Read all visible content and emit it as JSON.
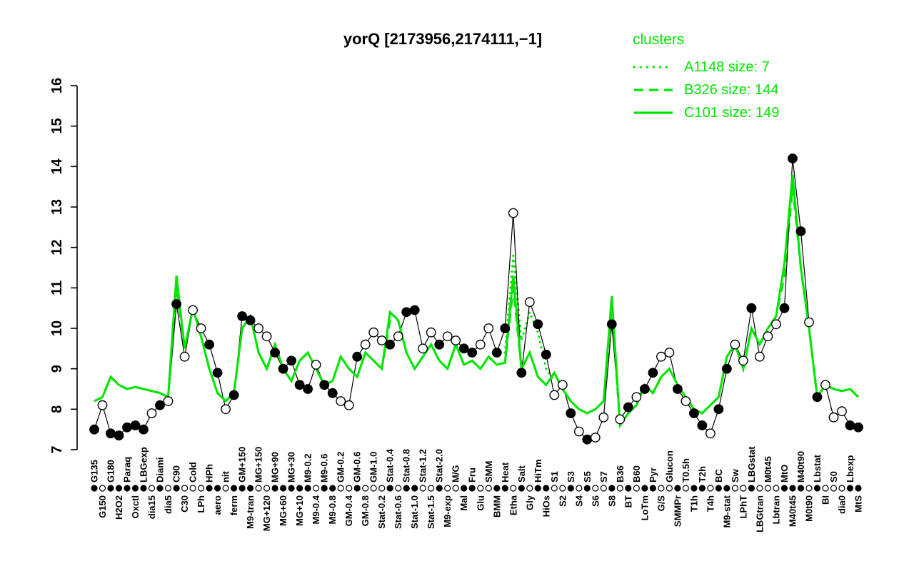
{
  "title": "yorQ [2173956,2174111,−1]",
  "legend": {
    "title": "clusters",
    "items": [
      {
        "label": "A1148 size: 7",
        "style": "dotted"
      },
      {
        "label": "B326 size: 144",
        "style": "dashed"
      },
      {
        "label": "C101 size: 149",
        "style": "solid"
      }
    ]
  },
  "colors": {
    "cluster_green": "#00e600",
    "gene_black": "#000000",
    "background": "#ffffff"
  },
  "axes": {
    "y_ticks": [
      7,
      8,
      9,
      10,
      11,
      12,
      13,
      14,
      15,
      16
    ]
  },
  "chart_data": {
    "type": "line",
    "title": "yorQ [2173956,2174111,−1]",
    "ylabel": "",
    "xlabel": "",
    "ylim": [
      7,
      16
    ],
    "grid": false,
    "legend_position": "top-right",
    "categories": [
      "G135",
      "G150",
      "G180",
      "H2O2",
      "Paraq",
      "Oxctl",
      "LBGexp",
      "dia15",
      "Diami",
      "dia5",
      "C90",
      "C30",
      "Cold",
      "LPh",
      "HPh",
      "aero",
      "nit",
      "ferm",
      "GM+150",
      "M9-tran",
      "MG+150",
      "MG+120",
      "MG+90",
      "MG+60",
      "MG+30",
      "MG+10",
      "M9-0.2",
      "M9-0.4",
      "M9-0.6",
      "M9-0.8",
      "GM-0.2",
      "GM-0.4",
      "GM-0.6",
      "GM-0.8",
      "GM-1.0",
      "Stat-0.2",
      "Stat-0.4",
      "Stat-0.6",
      "Stat-0.8",
      "Stat-1.0",
      "Stat-1.2",
      "Stat-1.5",
      "Stat-2.0",
      "M9-exp",
      "M/G",
      "Mal",
      "Fru",
      "Glu",
      "SMM",
      "BMM",
      "Heat",
      "Etha",
      "Salt",
      "Gly",
      "HiTm",
      "HiOs",
      "S1",
      "S2",
      "S3",
      "S4",
      "S5",
      "S6",
      "S7",
      "S8",
      "B36",
      "BT",
      "B60",
      "LoTm",
      "Pyr",
      "G/S",
      "Glucon",
      "SMMPr",
      "T0.5h",
      "T1h",
      "T2h",
      "T4h",
      "BC",
      "M9-stat",
      "Sw",
      "LPhT",
      "LBGstat",
      "LBGtran",
      "M0t45",
      "Lbtran",
      "MtO",
      "M40t45",
      "M40t90",
      "M0t90",
      "Lbstat",
      "BI",
      "S0",
      "dia0",
      "Lbexp",
      "MtS"
    ],
    "series": [
      {
        "name": "yorQ",
        "color": "#000000",
        "style": "solid-with-points",
        "values": [
          7.5,
          8.1,
          7.4,
          7.35,
          7.55,
          7.6,
          7.5,
          7.9,
          8.1,
          8.2,
          10.6,
          9.3,
          10.45,
          10.0,
          9.6,
          8.9,
          8.0,
          8.35,
          10.3,
          10.2,
          10.0,
          9.8,
          9.4,
          9.0,
          9.2,
          8.6,
          8.5,
          9.1,
          8.6,
          8.4,
          8.2,
          8.1,
          9.3,
          9.6,
          9.9,
          9.7,
          9.6,
          9.8,
          10.4,
          10.45,
          9.5,
          9.9,
          9.6,
          9.8,
          9.7,
          9.5,
          9.4,
          9.6,
          10.0,
          9.4,
          10.0,
          12.85,
          8.9,
          10.65,
          10.1,
          9.35,
          8.35,
          8.6,
          7.9,
          7.45,
          7.25,
          7.3,
          7.8,
          10.1,
          7.75,
          8.05,
          8.3,
          8.5,
          8.9,
          9.3,
          9.4,
          8.5,
          8.2,
          7.9,
          7.6,
          7.4,
          8.0,
          9.0,
          9.6,
          9.2,
          10.5,
          9.3,
          9.8,
          10.1,
          10.5,
          14.2,
          12.4,
          10.15,
          8.3,
          8.6,
          7.8,
          7.95,
          7.6,
          7.55
        ],
        "open_point": [
          false,
          true,
          false,
          false,
          false,
          false,
          false,
          true,
          false,
          true,
          false,
          true,
          true,
          true,
          false,
          false,
          true,
          false,
          false,
          false,
          true,
          true,
          false,
          false,
          false,
          false,
          false,
          true,
          false,
          false,
          true,
          true,
          false,
          true,
          true,
          true,
          false,
          true,
          false,
          false,
          true,
          true,
          false,
          true,
          true,
          false,
          false,
          true,
          true,
          false,
          false,
          true,
          false,
          true,
          false,
          false,
          true,
          true,
          false,
          true,
          false,
          true,
          true,
          false,
          true,
          false,
          true,
          false,
          false,
          true,
          true,
          false,
          true,
          false,
          false,
          true,
          false,
          false,
          true,
          true,
          false,
          true,
          true,
          true,
          false,
          false,
          false,
          true,
          false,
          true,
          true,
          true,
          false,
          false
        ]
      },
      {
        "name": "A1148",
        "color": "#00e600",
        "style": "dotted",
        "values": [
          null,
          null,
          null,
          null,
          null,
          null,
          null,
          null,
          null,
          null,
          null,
          null,
          null,
          null,
          null,
          null,
          null,
          null,
          null,
          null,
          null,
          null,
          null,
          null,
          null,
          null,
          null,
          null,
          null,
          null,
          null,
          null,
          null,
          null,
          null,
          null,
          null,
          null,
          null,
          null,
          null,
          null,
          null,
          null,
          null,
          null,
          null,
          null,
          null,
          null,
          9.4,
          11.8,
          9.7,
          10.4,
          9.9,
          9.0,
          8.7,
          null,
          null,
          null,
          null,
          null,
          null,
          null,
          null,
          null,
          null,
          null,
          null,
          null,
          null,
          null,
          null,
          null,
          null,
          null,
          null,
          null,
          null,
          null,
          null,
          null,
          null,
          null,
          null,
          null,
          null,
          null,
          null,
          null,
          null,
          null,
          null,
          null
        ]
      },
      {
        "name": "B326",
        "color": "#00e600",
        "style": "dashed",
        "values": [
          8.2,
          8.3,
          8.8,
          8.6,
          8.5,
          8.55,
          8.5,
          8.45,
          8.4,
          8.3,
          11.0,
          9.5,
          10.5,
          9.8,
          9.0,
          8.4,
          8.2,
          8.4,
          10.0,
          10.3,
          9.4,
          9.0,
          9.6,
          9.0,
          8.7,
          9.2,
          9.4,
          9.0,
          8.6,
          8.7,
          9.3,
          9.0,
          8.8,
          9.4,
          9.2,
          9.0,
          10.2,
          10.2,
          9.4,
          9.0,
          9.3,
          9.6,
          9.2,
          9.0,
          9.6,
          9.1,
          9.2,
          9.0,
          9.3,
          9.1,
          9.15,
          11.0,
          9.0,
          9.4,
          8.8,
          8.6,
          8.9,
          8.5,
          8.2,
          8.0,
          7.9,
          8.0,
          8.2,
          10.5,
          7.6,
          7.9,
          8.1,
          8.6,
          8.4,
          8.8,
          9.0,
          8.6,
          8.3,
          8.0,
          7.9,
          8.1,
          8.3,
          9.3,
          9.6,
          9.0,
          10.0,
          9.6,
          10.0,
          10.3,
          11.3,
          13.5,
          11.5,
          10.0,
          8.3,
          8.6,
          8.5,
          8.45,
          8.5,
          8.3
        ]
      },
      {
        "name": "C101",
        "color": "#00e600",
        "style": "solid",
        "values": [
          8.2,
          8.3,
          8.8,
          8.6,
          8.5,
          8.55,
          8.5,
          8.45,
          8.4,
          8.3,
          11.3,
          9.5,
          10.5,
          9.8,
          9.0,
          8.4,
          8.2,
          8.4,
          10.0,
          10.3,
          9.4,
          9.0,
          9.6,
          9.0,
          8.7,
          9.2,
          9.4,
          9.0,
          8.6,
          8.7,
          9.3,
          9.0,
          8.8,
          9.4,
          9.2,
          9.0,
          10.4,
          10.2,
          9.4,
          9.0,
          9.3,
          9.6,
          9.2,
          9.0,
          9.6,
          9.1,
          9.2,
          9.0,
          9.3,
          9.1,
          9.15,
          11.3,
          9.0,
          9.4,
          8.8,
          8.6,
          8.9,
          8.5,
          8.2,
          8.0,
          7.9,
          8.0,
          8.2,
          10.8,
          7.6,
          7.9,
          8.1,
          8.6,
          8.4,
          8.8,
          9.0,
          8.6,
          8.3,
          8.0,
          7.9,
          8.1,
          8.3,
          9.3,
          9.6,
          9.0,
          10.0,
          9.6,
          10.0,
          10.3,
          11.6,
          13.8,
          11.5,
          10.0,
          8.3,
          8.6,
          8.5,
          8.45,
          8.5,
          8.3
        ]
      }
    ]
  }
}
